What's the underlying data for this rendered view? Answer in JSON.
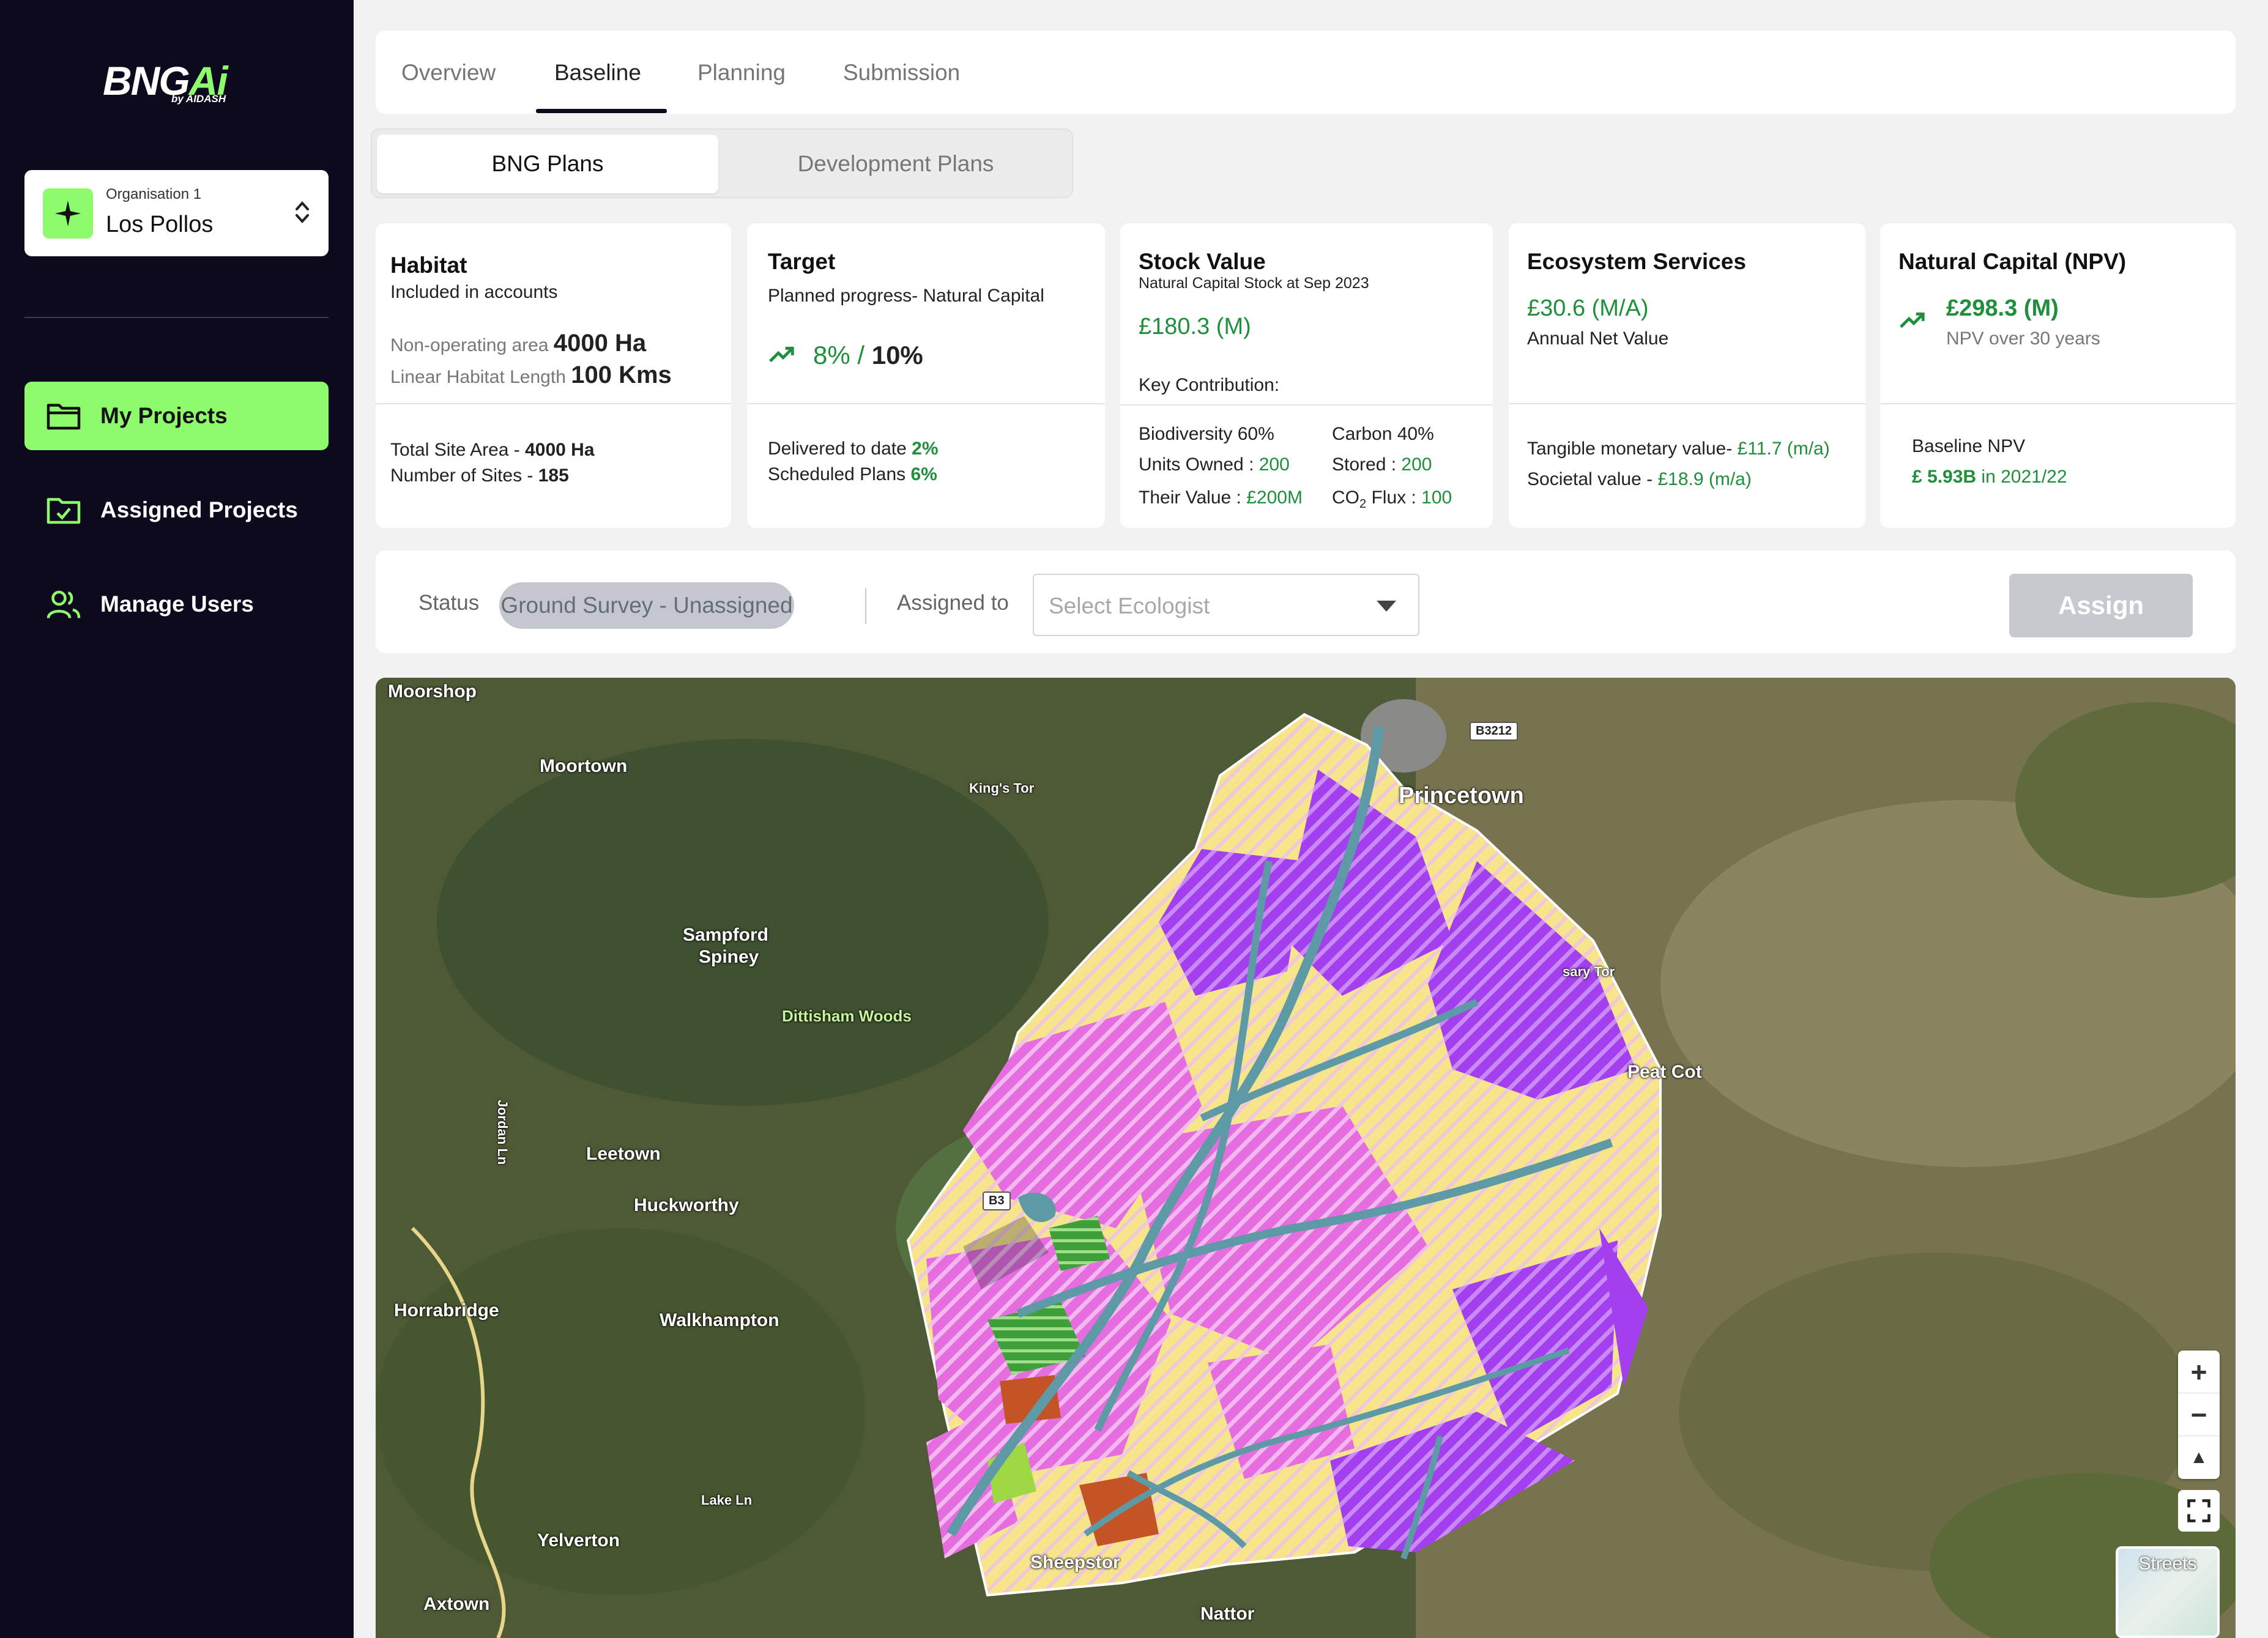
{
  "app": {
    "logo_main": "BNG",
    "logo_accent": "Ai",
    "logo_sub": "by AIDASH"
  },
  "org": {
    "label": "Organisation 1",
    "name": "Los Pollos"
  },
  "nav": [
    {
      "label": "My Projects",
      "icon": "folder-icon",
      "active": true
    },
    {
      "label": "Assigned Projects",
      "icon": "folder-check-icon",
      "active": false
    },
    {
      "label": "Manage Users",
      "icon": "users-icon",
      "active": false
    }
  ],
  "tabs": [
    "Overview",
    "Baseline",
    "Planning",
    "Submission"
  ],
  "active_tab": "Baseline",
  "segments": [
    "BNG Plans",
    "Development Plans"
  ],
  "cards": {
    "habitat": {
      "title": "Habitat",
      "subtitle": "Included in accounts",
      "line1_label": "Non-operating area",
      "line1_value": "4000 Ha",
      "line2_label": "Linear Habitat Length",
      "line2_value": "100 Kms",
      "foot1_label": "Total Site Area - ",
      "foot1_value": "4000 Ha",
      "foot2_label": "Number of Sites - ",
      "foot2_value": "185"
    },
    "target": {
      "title": "Target",
      "subtitle": "Planned progress- Natural Capital",
      "progress": "8%",
      "sep": " / ",
      "goal": "10%",
      "foot1_label": "Delivered to date ",
      "foot1_value": "2%",
      "foot2_label": "Scheduled Plans ",
      "foot2_value": "6%"
    },
    "stock": {
      "title": "Stock Value",
      "subtitle": "Natural Capital Stock at Sep 2023",
      "value": "£180.3 (M)",
      "key": "Key Contribution:",
      "bio_title": "Biodiversity 60%",
      "bio_units_label": "Units Owned : ",
      "bio_units": "200",
      "bio_value_label": "Their Value : ",
      "bio_value": "£200M",
      "carbon_title": "Carbon 40%",
      "carbon_stored_label": "Stored : ",
      "carbon_stored": "200",
      "carbon_flux_label": "CO",
      "carbon_flux_sub": "2",
      "carbon_flux_label2": " Flux : ",
      "carbon_flux": "100"
    },
    "eco": {
      "title": "Ecosystem Services",
      "value": "£30.6 (M/A)",
      "subtitle": "Annual Net Value",
      "foot1_label": "Tangible monetary value- ",
      "foot1_value": "£11.7 (m/a)",
      "foot2_label": "Societal value - ",
      "foot2_value": "£18.9 (m/a)"
    },
    "npv": {
      "title": "Natural Capital (NPV)",
      "value": "£298.3 (M)",
      "subtitle": "NPV over 30 years",
      "foot1": "Baseline NPV",
      "foot2_value": "£ 5.93B",
      "foot2_label": " in 2021/22"
    }
  },
  "status": {
    "label": "Status",
    "value": "Ground Survey - Unassigned",
    "assigned_label": "Assigned to",
    "select_placeholder": "Select Ecologist",
    "assign_button": "Assign"
  },
  "map": {
    "places": [
      {
        "text": "Moorshop",
        "size": "normal"
      },
      {
        "text": "Moortown",
        "size": "normal"
      },
      {
        "text": "King's Tor",
        "size": "small"
      },
      {
        "text": "Princetown",
        "size": "big"
      },
      {
        "text": "B3212",
        "size": "road"
      },
      {
        "text": "Sampford",
        "size": "normal"
      },
      {
        "text": "Spiney",
        "size": "normal"
      },
      {
        "text": "Dittisham Woods",
        "size": "poi"
      },
      {
        "text": "sary Tor",
        "size": "small"
      },
      {
        "text": "Peat Cot",
        "size": "normal"
      },
      {
        "text": "Jordan Ln",
        "size": "small"
      },
      {
        "text": "Leetown",
        "size": "normal"
      },
      {
        "text": "B3",
        "size": "road"
      },
      {
        "text": "Huckworthy",
        "size": "normal"
      },
      {
        "text": "Horrabridge",
        "size": "normal"
      },
      {
        "text": "Walkhampton",
        "size": "normal"
      },
      {
        "text": "Lake Ln",
        "size": "small"
      },
      {
        "text": "Yelverton",
        "size": "normal"
      },
      {
        "text": "Sheepstor",
        "size": "normal"
      },
      {
        "text": "Axtown",
        "size": "normal"
      },
      {
        "text": "Nattor",
        "size": "normal"
      }
    ],
    "zoom_in": "+",
    "zoom_out": "−",
    "compass": "▲",
    "layer_label": "Streets"
  },
  "colors": {
    "accent": "#8dfb6c",
    "sidebar": "#0c0a1c",
    "positive": "#1f8f3b",
    "magenta": "#e860e0",
    "purple": "#a63df2",
    "yellow": "#f6e58a",
    "teal": "#5e9aa5"
  }
}
